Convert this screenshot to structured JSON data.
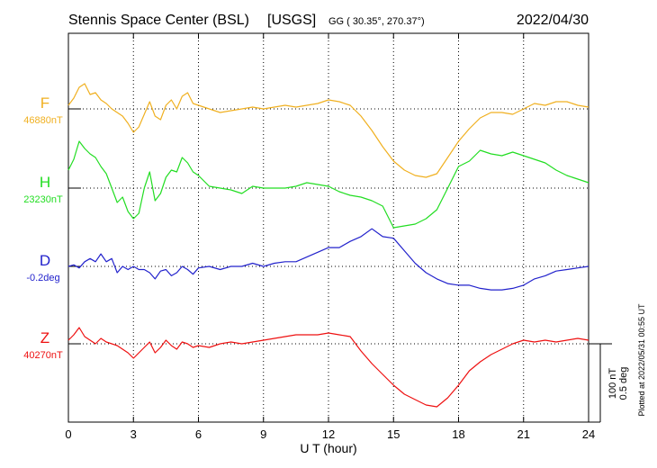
{
  "header": {
    "station": "Stennis Space Center (BSL)",
    "agency": "[USGS]",
    "coords": "GG ( 30.35°, 270.37°)",
    "date": "2022/04/30"
  },
  "side_note": "Plotted at 2022/05/31 00:55 UT",
  "scale_bar": {
    "nt": "100 nT",
    "deg": "0.5 deg"
  },
  "chart_data": {
    "type": "line",
    "title": "Stennis Space Center (BSL)  [USGS]",
    "xlabel": "U T (hour)",
    "xlim": [
      0,
      24
    ],
    "xticks": [
      "0",
      "3",
      "6",
      "9",
      "12",
      "15",
      "18",
      "21",
      "24"
    ],
    "grid": true,
    "series": [
      {
        "name": "F",
        "baseline": "46880nT",
        "color": "#f0b020",
        "units": "nT from baseline",
        "x": [
          0,
          0.25,
          0.5,
          0.75,
          1,
          1.25,
          1.5,
          1.75,
          2,
          2.25,
          2.5,
          2.75,
          3,
          3.25,
          3.5,
          3.75,
          4,
          4.25,
          4.5,
          4.75,
          5,
          5.25,
          5.5,
          5.75,
          6,
          6.5,
          7,
          7.5,
          8,
          8.5,
          9,
          9.5,
          10,
          10.5,
          11,
          11.5,
          12,
          12.5,
          13,
          13.5,
          14,
          14.5,
          15,
          15.5,
          16,
          16.5,
          17,
          17.5,
          18,
          18.5,
          19,
          19.5,
          20,
          20.5,
          21,
          21.5,
          22,
          22.5,
          23,
          23.5,
          24
        ],
        "y": [
          4,
          12,
          24,
          28,
          16,
          18,
          10,
          6,
          0,
          -4,
          -8,
          -16,
          -26,
          -20,
          -6,
          8,
          -8,
          -12,
          4,
          10,
          0,
          14,
          18,
          6,
          4,
          0,
          -4,
          -2,
          0,
          2,
          0,
          2,
          4,
          2,
          4,
          6,
          10,
          8,
          4,
          -8,
          -24,
          -42,
          -58,
          -68,
          -74,
          -76,
          -72,
          -54,
          -36,
          -22,
          -10,
          -4,
          -4,
          -6,
          0,
          6,
          4,
          8,
          8,
          4,
          2
        ]
      },
      {
        "name": "H",
        "baseline": "23230nT",
        "color": "#22dd22",
        "units": "nT from baseline",
        "x": [
          0,
          0.25,
          0.5,
          0.75,
          1,
          1.25,
          1.5,
          1.75,
          2,
          2.25,
          2.5,
          2.75,
          3,
          3.25,
          3.5,
          3.75,
          4,
          4.25,
          4.5,
          4.75,
          5,
          5.25,
          5.5,
          5.75,
          6,
          6.5,
          7,
          7.5,
          8,
          8.5,
          9,
          9.5,
          10,
          10.5,
          11,
          11.5,
          12,
          12.5,
          13,
          13.5,
          14,
          14.5,
          15,
          15.5,
          16,
          16.5,
          17,
          17.5,
          18,
          18.5,
          19,
          19.5,
          20,
          20.5,
          21,
          21.5,
          22,
          22.5,
          23,
          23.5,
          24
        ],
        "y": [
          20,
          32,
          52,
          44,
          38,
          34,
          24,
          16,
          0,
          -16,
          -10,
          -26,
          -34,
          -28,
          0,
          18,
          -14,
          -6,
          12,
          20,
          18,
          34,
          28,
          18,
          14,
          2,
          0,
          -2,
          -6,
          2,
          0,
          0,
          0,
          2,
          6,
          4,
          2,
          -4,
          -8,
          -10,
          -14,
          -20,
          -44,
          -42,
          -40,
          -34,
          -24,
          0,
          24,
          30,
          42,
          38,
          36,
          40,
          36,
          32,
          28,
          20,
          14,
          10,
          6
        ]
      },
      {
        "name": "D",
        "baseline": "-0.2deg",
        "color": "#2222cc",
        "units": "deg from baseline",
        "x": [
          0,
          0.25,
          0.5,
          0.75,
          1,
          1.25,
          1.5,
          1.75,
          2,
          2.25,
          2.5,
          2.75,
          3,
          3.25,
          3.5,
          3.75,
          4,
          4.25,
          4.5,
          4.75,
          5,
          5.25,
          5.5,
          5.75,
          6,
          6.5,
          7,
          7.5,
          8,
          8.5,
          9,
          9.5,
          10,
          10.5,
          11,
          11.5,
          12,
          12.5,
          13,
          13.5,
          14,
          14.5,
          15,
          15.5,
          16,
          16.5,
          17,
          17.5,
          18,
          18.5,
          19,
          19.5,
          20,
          20.5,
          21,
          21.5,
          22,
          22.5,
          23,
          23.5,
          24
        ],
        "y": [
          0,
          0.01,
          -0.01,
          0.03,
          0.05,
          0.03,
          0.08,
          0.03,
          0.05,
          -0.04,
          0,
          -0.02,
          0,
          -0.02,
          -0.02,
          -0.04,
          -0.08,
          -0.03,
          -0.02,
          -0.06,
          -0.04,
          0,
          -0.02,
          -0.05,
          -0.01,
          0,
          -0.02,
          0,
          0,
          0.02,
          0,
          0.02,
          0.03,
          0.03,
          0.06,
          0.09,
          0.12,
          0.12,
          0.16,
          0.19,
          0.24,
          0.19,
          0.18,
          0.1,
          0.02,
          -0.04,
          -0.08,
          -0.11,
          -0.12,
          -0.12,
          -0.14,
          -0.15,
          -0.15,
          -0.14,
          -0.12,
          -0.08,
          -0.06,
          -0.03,
          -0.02,
          -0.01,
          0
        ]
      },
      {
        "name": "Z",
        "baseline": "40270nT",
        "color": "#ee1111",
        "units": "nT from baseline",
        "x": [
          0,
          0.25,
          0.5,
          0.75,
          1,
          1.25,
          1.5,
          1.75,
          2,
          2.25,
          2.5,
          2.75,
          3,
          3.25,
          3.5,
          3.75,
          4,
          4.25,
          4.5,
          4.75,
          5,
          5.25,
          5.5,
          5.75,
          6,
          6.5,
          7,
          7.5,
          8,
          8.5,
          9,
          9.5,
          10,
          10.5,
          11,
          11.5,
          12,
          12.5,
          13,
          13.5,
          14,
          14.5,
          15,
          15.5,
          16,
          16.5,
          17,
          17.5,
          18,
          18.5,
          19,
          19.5,
          20,
          20.5,
          21,
          21.5,
          22,
          22.5,
          23,
          23.5,
          24
        ],
        "y": [
          4,
          10,
          18,
          8,
          4,
          0,
          6,
          2,
          0,
          -2,
          -6,
          -10,
          -16,
          -10,
          -4,
          2,
          -10,
          -4,
          4,
          -2,
          -6,
          2,
          0,
          -4,
          -2,
          -4,
          0,
          2,
          0,
          2,
          4,
          6,
          8,
          10,
          10,
          10,
          12,
          10,
          8,
          -8,
          -22,
          -34,
          -46,
          -56,
          -62,
          -68,
          -70,
          -60,
          -46,
          -30,
          -20,
          -12,
          -6,
          0,
          4,
          2,
          4,
          2,
          4,
          6,
          4
        ]
      }
    ]
  }
}
